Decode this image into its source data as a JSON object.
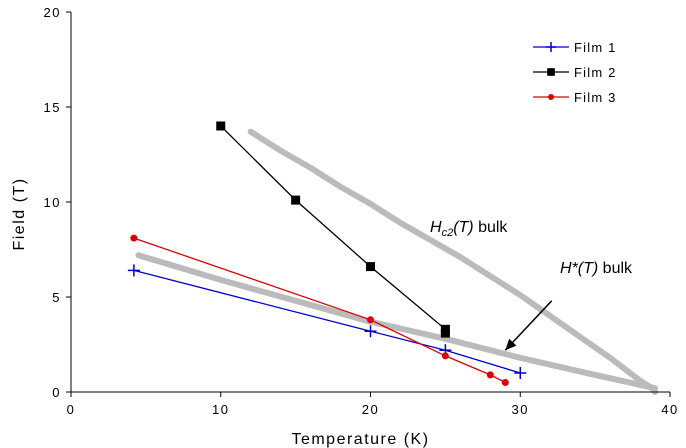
{
  "chart_data": {
    "type": "line",
    "xlabel": "Temperature (K)",
    "ylabel": "Field (T)",
    "xlim": [
      0,
      40
    ],
    "ylim": [
      0,
      20
    ],
    "xticks": [
      0,
      10,
      20,
      30,
      40
    ],
    "yticks": [
      0,
      5,
      10,
      15,
      20
    ],
    "grid": false,
    "legend_position": "top-right",
    "series": [
      {
        "name": "Film 1",
        "color": "#0000cc",
        "marker": "plus",
        "x": [
          4.2,
          20,
          25,
          30
        ],
        "y": [
          6.4,
          3.2,
          2.2,
          1.0
        ]
      },
      {
        "name": "Film 2",
        "color": "#000000",
        "marker": "square",
        "x": [
          10,
          15,
          20,
          25,
          25
        ],
        "y": [
          14.0,
          10.1,
          6.6,
          3.3,
          3.1
        ]
      },
      {
        "name": "Film 3",
        "color": "#dd0000",
        "marker": "circle",
        "x": [
          4.2,
          20,
          25,
          28,
          29
        ],
        "y": [
          8.1,
          3.8,
          1.9,
          0.9,
          0.5
        ]
      }
    ],
    "curves": [
      {
        "label_main": "H",
        "label_sub": "c2",
        "label_rest": "(T)",
        "label_tail": " bulk",
        "color": "#bbbbbb",
        "x": [
          12,
          14,
          16,
          18,
          20,
          22,
          24,
          26,
          28,
          30,
          32,
          34,
          36,
          37,
          38,
          38.8,
          39
        ],
        "y": [
          13.7,
          12.7,
          11.8,
          10.8,
          9.9,
          8.9,
          8.0,
          7.1,
          6.1,
          5.1,
          4.0,
          2.9,
          1.8,
          1.2,
          0.6,
          0.2,
          0.0
        ]
      },
      {
        "label_main": "H*",
        "label_sub": "",
        "label_rest": "(T)",
        "label_tail": " bulk",
        "color": "#bbbbbb",
        "x": [
          4.5,
          10,
          15,
          20,
          25,
          30,
          35,
          39
        ],
        "y": [
          7.2,
          5.9,
          4.8,
          3.7,
          2.8,
          1.8,
          0.9,
          0.2
        ]
      }
    ],
    "arrow": {
      "from": [
        32.1,
        4.8
      ],
      "to": [
        29.0,
        2.2
      ]
    }
  }
}
